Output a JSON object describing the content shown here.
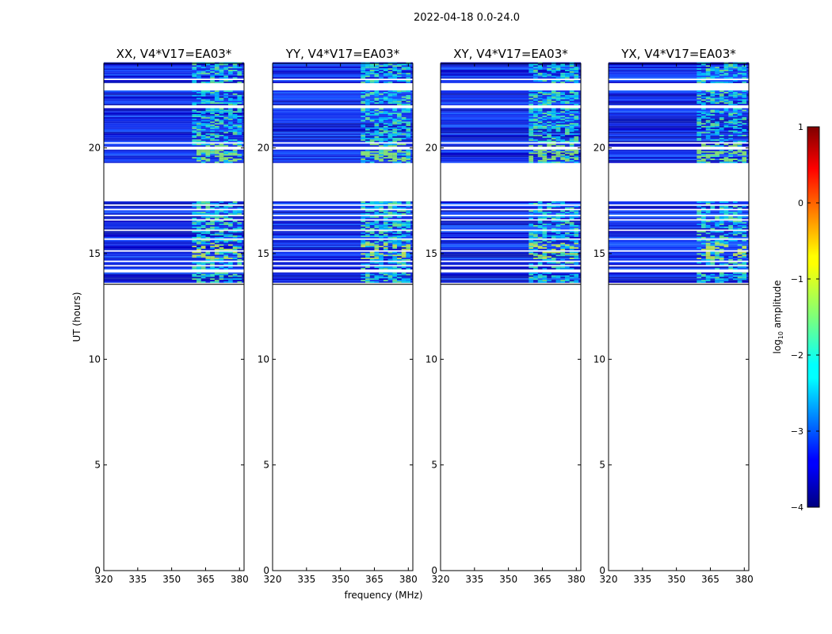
{
  "chart_data": {
    "type": "heatmap",
    "suptitle": "2022-04-18 0.0-24.0",
    "xlabel": "frequency (MHz)",
    "ylabel": "UT (hours)",
    "xlim": [
      320,
      382
    ],
    "ylim": [
      0,
      24
    ],
    "xticks": [
      320,
      335,
      350,
      365,
      380
    ],
    "yticks": [
      0,
      5,
      10,
      15,
      20
    ],
    "data_range_hours": [
      13.55,
      24.0
    ],
    "rfi_band_mhz": [
      359,
      381
    ],
    "panels": [
      {
        "title": "XX, V4*V17=EA03*"
      },
      {
        "title": "YY, V4*V17=EA03*"
      },
      {
        "title": "XY, V4*V17=EA03*"
      },
      {
        "title": "YX, V4*V17=EA03*"
      }
    ],
    "gaps_hours": [
      [
        13.55,
        13.62
      ],
      [
        14.1,
        14.22
      ],
      [
        14.38,
        14.45
      ],
      [
        14.62,
        14.68
      ],
      [
        15.1,
        15.16
      ],
      [
        15.62,
        15.7
      ],
      [
        15.9,
        15.96
      ],
      [
        16.1,
        16.16
      ],
      [
        16.32,
        16.38
      ],
      [
        16.55,
        16.62
      ],
      [
        16.8,
        16.86
      ],
      [
        17.05,
        17.1
      ],
      [
        17.25,
        17.3
      ],
      [
        17.48,
        19.3
      ],
      [
        19.95,
        20.05
      ],
      [
        20.2,
        20.3
      ],
      [
        20.45,
        20.5
      ],
      [
        21.85,
        22.0
      ],
      [
        22.7,
        23.1
      ],
      [
        23.2,
        23.3
      ]
    ],
    "colorbar": {
      "label": "log10 amplitude",
      "range": [
        -4,
        1
      ],
      "ticks": [
        -4,
        -3,
        -2,
        -1,
        0,
        1
      ],
      "tick_labels": [
        "−4",
        "−3",
        "−2",
        "−1",
        "0",
        "1"
      ],
      "colormap": "jet"
    }
  }
}
